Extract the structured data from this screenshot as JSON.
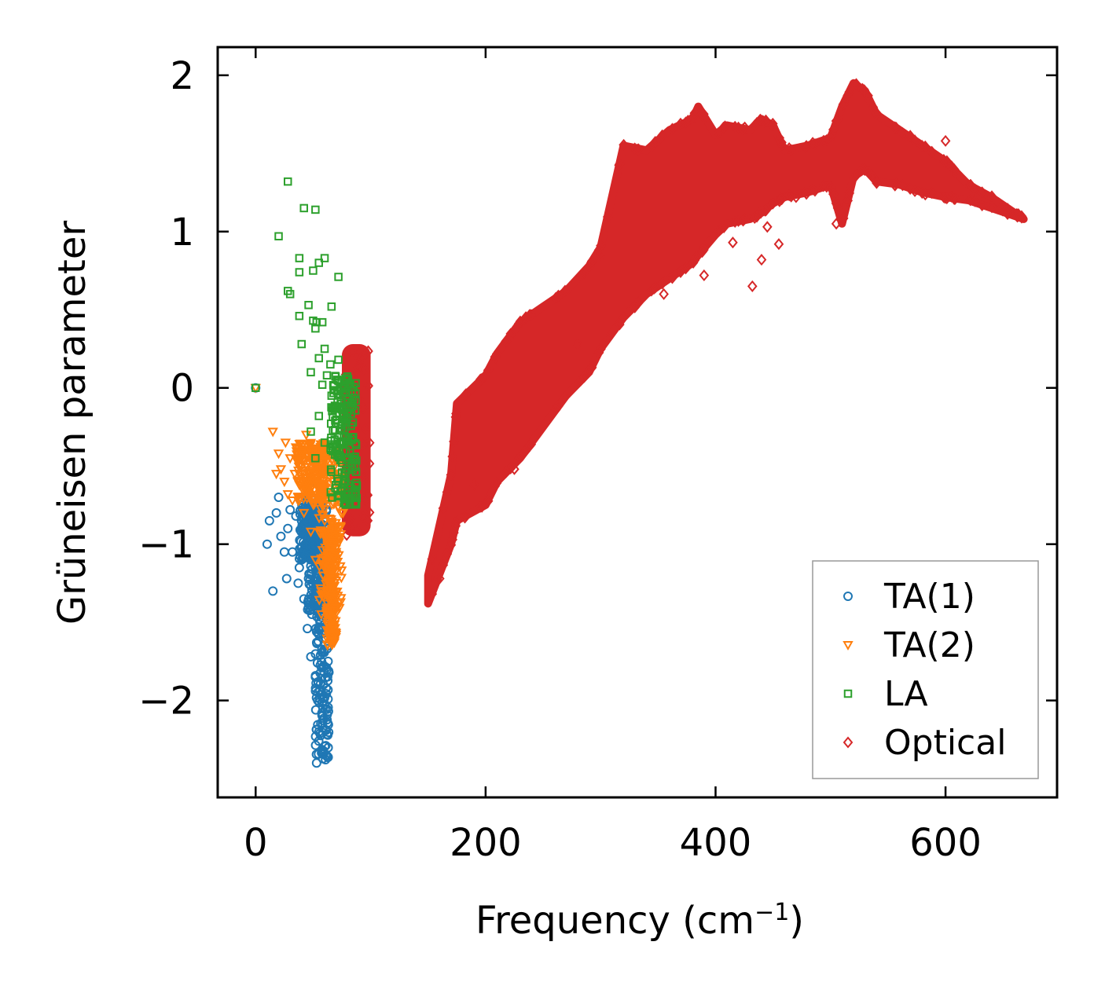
{
  "chart_data": {
    "type": "scatter",
    "title": "",
    "xlabel": "Frequency (cm",
    "xlabel_superscript": "−1",
    "xlabel_suffix": ")",
    "ylabel": "Grüneisen parameter",
    "xlim": [
      -33,
      697
    ],
    "ylim": [
      -2.62,
      2.18
    ],
    "x_ticks": [
      0,
      200,
      400,
      600
    ],
    "x_tick_labels": [
      "0",
      "200",
      "400",
      "600"
    ],
    "y_ticks": [
      -2,
      -1,
      0,
      1,
      2
    ],
    "y_tick_labels": [
      "−2",
      "−1",
      "0",
      "1",
      "2"
    ],
    "grid": false,
    "legend_position": "bottom-right",
    "series": [
      {
        "name": "TA(1)",
        "color": "#1f77b4",
        "marker": "circle",
        "points": [
          [
            0,
            0
          ],
          [
            10,
            -1.0
          ],
          [
            12,
            -0.85
          ],
          [
            15,
            -1.3
          ],
          [
            18,
            -0.8
          ],
          [
            20,
            -0.7
          ],
          [
            22,
            -0.95
          ],
          [
            25,
            -1.05
          ],
          [
            27,
            -1.22
          ],
          [
            28,
            -0.9
          ],
          [
            30,
            -0.78
          ],
          [
            32,
            -1.05
          ],
          [
            35,
            -0.82
          ],
          [
            37,
            -1.25
          ],
          [
            38,
            -1.15
          ],
          [
            40,
            -0.9
          ],
          [
            40,
            -0.7
          ],
          [
            42,
            -1.35
          ],
          [
            44,
            -1.0
          ],
          [
            45,
            -0.85
          ],
          [
            45,
            -1.54
          ],
          [
            46,
            -1.22
          ],
          [
            48,
            -1.72
          ],
          [
            48,
            -0.6
          ],
          [
            50,
            -0.72
          ],
          [
            50,
            -1.1
          ],
          [
            52,
            -1.85
          ],
          [
            53,
            -2.4
          ],
          [
            54,
            -2.0
          ],
          [
            55,
            -0.8
          ],
          [
            55,
            -2.2
          ],
          [
            56,
            -1.5
          ],
          [
            57,
            -0.55
          ],
          [
            58,
            -2.1
          ],
          [
            59,
            -1.9
          ],
          [
            60,
            -0.9
          ],
          [
            60,
            -1.3
          ],
          [
            61,
            -1.6
          ],
          [
            62,
            -1.4
          ],
          [
            63,
            -1.75
          ],
          [
            64,
            -1.0
          ],
          [
            66,
            -1.2
          ]
        ],
        "bands": [
          {
            "x": [
              52,
              64
            ],
            "y_top": -0.95,
            "y_bottom": -2.38
          },
          {
            "x": [
              45,
              62
            ],
            "y_top": -0.75,
            "y_bottom": -1.45
          },
          {
            "x": [
              38,
              58
            ],
            "y_top": -0.7,
            "y_bottom": -1.1
          }
        ]
      },
      {
        "name": "TA(2)",
        "color": "#ff7f0e",
        "marker": "triangle-down",
        "points": [
          [
            0,
            0
          ],
          [
            15,
            -0.28
          ],
          [
            18,
            -0.55
          ],
          [
            20,
            -0.42
          ],
          [
            22,
            -0.52
          ],
          [
            25,
            -0.6
          ],
          [
            26,
            -0.35
          ],
          [
            28,
            -0.68
          ],
          [
            30,
            -0.45
          ],
          [
            32,
            -0.72
          ],
          [
            34,
            -0.55
          ],
          [
            35,
            -0.38
          ],
          [
            38,
            -0.62
          ],
          [
            40,
            -0.5
          ],
          [
            42,
            -0.8
          ],
          [
            44,
            -0.3
          ],
          [
            45,
            -0.58
          ],
          [
            48,
            -0.92
          ],
          [
            50,
            -0.4
          ],
          [
            52,
            -1.1
          ],
          [
            55,
            -0.65
          ],
          [
            57,
            -1.3
          ],
          [
            58,
            -0.48
          ],
          [
            60,
            -0.85
          ],
          [
            62,
            -1.45
          ],
          [
            64,
            -1.2
          ],
          [
            66,
            -1.62
          ],
          [
            68,
            -0.7
          ],
          [
            70,
            -1.05
          ],
          [
            72,
            -0.9
          ],
          [
            74,
            -0.6
          ],
          [
            76,
            -0.8
          ]
        ],
        "bands": [
          {
            "x": [
              55,
              75
            ],
            "y_top": -0.4,
            "y_bottom": -1.45
          },
          {
            "x": [
              62,
              70
            ],
            "y_top": -0.9,
            "y_bottom": -1.65
          },
          {
            "x": [
              35,
              60
            ],
            "y_top": -0.35,
            "y_bottom": -0.75
          }
        ]
      },
      {
        "name": "LA",
        "color": "#2ca02c",
        "marker": "square",
        "points": [
          [
            0,
            0
          ],
          [
            28,
            1.32
          ],
          [
            20,
            0.97
          ],
          [
            42,
            1.15
          ],
          [
            52,
            1.14
          ],
          [
            38,
            0.83
          ],
          [
            60,
            0.83
          ],
          [
            55,
            0.8
          ],
          [
            38,
            0.74
          ],
          [
            50,
            0.75
          ],
          [
            72,
            0.71
          ],
          [
            28,
            0.62
          ],
          [
            30,
            0.6
          ],
          [
            46,
            0.53
          ],
          [
            66,
            0.52
          ],
          [
            38,
            0.46
          ],
          [
            50,
            0.43
          ],
          [
            53,
            0.42
          ],
          [
            58,
            0.42
          ],
          [
            52,
            0.38
          ],
          [
            40,
            0.28
          ],
          [
            60,
            0.25
          ],
          [
            55,
            0.19
          ],
          [
            65,
            0.15
          ],
          [
            72,
            0.18
          ],
          [
            48,
            0.1
          ],
          [
            62,
            0.08
          ],
          [
            58,
            0.02
          ],
          [
            66,
            -0.05
          ],
          [
            70,
            -0.12
          ],
          [
            55,
            -0.18
          ],
          [
            48,
            -0.28
          ],
          [
            60,
            -0.35
          ],
          [
            52,
            -0.45
          ]
        ],
        "bands": [
          {
            "x": [
              65,
              88
            ],
            "y_top": 0.08,
            "y_bottom": -0.75
          }
        ]
      },
      {
        "name": "Optical",
        "color": "#d62728",
        "marker": "diamond",
        "points": [
          [
            415,
            0.93
          ],
          [
            445,
            1.03
          ],
          [
            455,
            0.92
          ],
          [
            440,
            0.82
          ],
          [
            432,
            0.65
          ],
          [
            470,
            1.22
          ],
          [
            505,
            1.05
          ],
          [
            600,
            1.58
          ],
          [
            390,
            0.72
          ],
          [
            355,
            0.6
          ],
          [
            190,
            -0.62
          ],
          [
            225,
            -0.52
          ],
          [
            160,
            -1.22
          ],
          [
            300,
            0.85
          ],
          [
            280,
            0.28
          ]
        ],
        "band": {
          "x": [
            150,
            170,
            175,
            200,
            210,
            230,
            250,
            270,
            290,
            300,
            320,
            340,
            360,
            380,
            385,
            400,
            410,
            430,
            440,
            450,
            460,
            480,
            500,
            510,
            520,
            530,
            540,
            560,
            580,
            600,
            620,
            640,
            660,
            668
          ],
          "y_top": [
            -1.2,
            -0.55,
            -0.1,
            0.08,
            0.22,
            0.42,
            0.52,
            0.62,
            0.78,
            0.9,
            1.55,
            1.52,
            1.65,
            1.72,
            1.8,
            1.62,
            1.68,
            1.65,
            1.72,
            1.68,
            1.52,
            1.55,
            1.6,
            1.8,
            1.95,
            1.9,
            1.75,
            1.65,
            1.55,
            1.45,
            1.3,
            1.22,
            1.12,
            1.08
          ],
          "y_bottom": [
            -1.38,
            -1.0,
            -0.85,
            -0.75,
            -0.6,
            -0.45,
            -0.25,
            -0.05,
            0.1,
            0.25,
            0.45,
            0.6,
            0.7,
            0.8,
            0.85,
            0.98,
            1.05,
            1.08,
            1.12,
            1.18,
            1.22,
            1.25,
            1.3,
            1.05,
            1.35,
            1.4,
            1.32,
            1.3,
            1.25,
            1.22,
            1.2,
            1.15,
            1.1,
            1.08
          ]
        },
        "left_band": {
          "x": [
            75,
            100
          ],
          "y_top": 0.28,
          "y_bottom": -0.95
        }
      }
    ]
  }
}
